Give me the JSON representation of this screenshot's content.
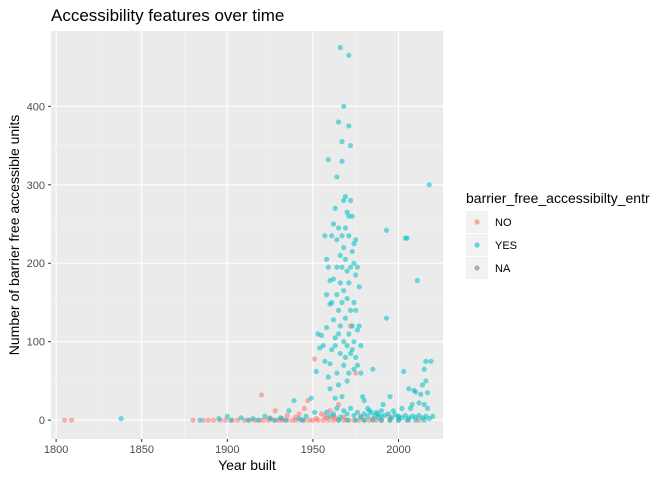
{
  "chart_data": {
    "type": "scatter",
    "title": "Accessibility features over time",
    "xlabel": "Year built",
    "ylabel": "Number of barrier free accessible units",
    "xlim": [
      1797,
      2026
    ],
    "ylim": [
      -24,
      496
    ],
    "x_ticks": [
      1800,
      1850,
      1900,
      1950,
      2000
    ],
    "y_ticks": [
      0,
      100,
      200,
      300,
      400
    ],
    "x_tick_labels": [
      "1800",
      "1850",
      "1900",
      "1950",
      "2000"
    ],
    "y_tick_labels": [
      "0",
      "100",
      "200",
      "300",
      "400"
    ],
    "grid": true,
    "legend": {
      "title": "barrier_free_accessibilty_entr",
      "position": "right",
      "entries": [
        {
          "label": "NO",
          "color": "#F8766D"
        },
        {
          "label": "YES",
          "color": "#00BFC4"
        },
        {
          "label": "NA",
          "color": "#7F7F7F"
        }
      ]
    },
    "colors": {
      "panel": "#EBEBEB",
      "grid_major": "#FFFFFF",
      "grid_minor": "#F5F5F5"
    },
    "series": [
      {
        "name": "NO",
        "color": "#F8766D",
        "points": [
          [
            1805,
            0
          ],
          [
            1809,
            0
          ],
          [
            1880,
            0
          ],
          [
            1886,
            0
          ],
          [
            1889,
            0
          ],
          [
            1892,
            0
          ],
          [
            1896,
            0
          ],
          [
            1899,
            0
          ],
          [
            1903,
            0
          ],
          [
            1906,
            0
          ],
          [
            1910,
            0
          ],
          [
            1913,
            0
          ],
          [
            1916,
            0
          ],
          [
            1919,
            0
          ],
          [
            1921,
            0
          ],
          [
            1924,
            0
          ],
          [
            1927,
            0
          ],
          [
            1930,
            0
          ],
          [
            1932,
            0
          ],
          [
            1935,
            0
          ],
          [
            1938,
            0
          ],
          [
            1940,
            0
          ],
          [
            1943,
            0
          ],
          [
            1945,
            0
          ],
          [
            1948,
            0
          ],
          [
            1950,
            0
          ],
          [
            1953,
            0
          ],
          [
            1956,
            0
          ],
          [
            1959,
            0
          ],
          [
            1962,
            0
          ],
          [
            1965,
            0
          ],
          [
            1968,
            0
          ],
          [
            1971,
            0
          ],
          [
            1974,
            0
          ],
          [
            1977,
            0
          ],
          [
            1980,
            0
          ],
          [
            1983,
            0
          ],
          [
            1987,
            0
          ],
          [
            1990,
            0
          ],
          [
            1995,
            0
          ],
          [
            2000,
            0
          ],
          [
            2006,
            0
          ],
          [
            2012,
            0
          ],
          [
            1920,
            32
          ],
          [
            1928,
            12
          ],
          [
            1935,
            6
          ],
          [
            1940,
            4
          ],
          [
            1945,
            15
          ],
          [
            1947,
            25
          ],
          [
            1951,
            78
          ],
          [
            1955,
            8
          ],
          [
            1958,
            3
          ],
          [
            1960,
            12
          ],
          [
            1962,
            5
          ],
          [
            1965,
            20
          ],
          [
            1968,
            4
          ],
          [
            1972,
            120
          ],
          [
            1975,
            60
          ],
          [
            1978,
            5
          ],
          [
            1985,
            2
          ],
          [
            1995,
            4
          ],
          [
            1925,
            3
          ],
          [
            1932,
            2
          ],
          [
            1942,
            8
          ],
          [
            1952,
            2
          ],
          [
            1957,
            5
          ],
          [
            1963,
            3
          ]
        ]
      },
      {
        "name": "YES",
        "color": "#00BFC4",
        "points": [
          [
            1838,
            2
          ],
          [
            1884,
            0
          ],
          [
            1895,
            2
          ],
          [
            1900,
            5
          ],
          [
            1902,
            0
          ],
          [
            1908,
            3
          ],
          [
            1912,
            0
          ],
          [
            1915,
            2
          ],
          [
            1918,
            0
          ],
          [
            1922,
            5
          ],
          [
            1925,
            2
          ],
          [
            1928,
            0
          ],
          [
            1931,
            3
          ],
          [
            1934,
            0
          ],
          [
            1936,
            12
          ],
          [
            1939,
            25
          ],
          [
            1942,
            2
          ],
          [
            1944,
            0
          ],
          [
            1946,
            5
          ],
          [
            1949,
            28
          ],
          [
            1951,
            10
          ],
          [
            1952,
            62
          ],
          [
            1953,
            110
          ],
          [
            1954,
            92
          ],
          [
            1955,
            108
          ],
          [
            1956,
            95
          ],
          [
            1957,
            75
          ],
          [
            1957,
            235
          ],
          [
            1958,
            118
          ],
          [
            1958,
            205
          ],
          [
            1958,
            160
          ],
          [
            1959,
            195
          ],
          [
            1959,
            332
          ],
          [
            1959,
            55
          ],
          [
            1960,
            72
          ],
          [
            1960,
            148
          ],
          [
            1960,
            178
          ],
          [
            1960,
            40
          ],
          [
            1961,
            90
          ],
          [
            1961,
            235
          ],
          [
            1961,
            150
          ],
          [
            1962,
            180
          ],
          [
            1962,
            128
          ],
          [
            1962,
            250
          ],
          [
            1963,
            105
          ],
          [
            1963,
            95
          ],
          [
            1963,
            270
          ],
          [
            1963,
            28
          ],
          [
            1964,
            230
          ],
          [
            1964,
            195
          ],
          [
            1964,
            160
          ],
          [
            1964,
            310
          ],
          [
            1964,
            60
          ],
          [
            1965,
            110
          ],
          [
            1965,
            380
          ],
          [
            1965,
            140
          ],
          [
            1965,
            245
          ],
          [
            1965,
            45
          ],
          [
            1966,
            475
          ],
          [
            1966,
            210
          ],
          [
            1966,
            175
          ],
          [
            1966,
            85
          ],
          [
            1966,
            120
          ],
          [
            1967,
            355
          ],
          [
            1967,
            235
          ],
          [
            1967,
            195
          ],
          [
            1967,
            330
          ],
          [
            1967,
            150
          ],
          [
            1967,
            30
          ],
          [
            1968,
            400
          ],
          [
            1968,
            280
          ],
          [
            1968,
            220
          ],
          [
            1968,
            165
          ],
          [
            1968,
            100
          ],
          [
            1968,
            70
          ],
          [
            1969,
            285
          ],
          [
            1969,
            245
          ],
          [
            1969,
            205
          ],
          [
            1969,
            130
          ],
          [
            1969,
            80
          ],
          [
            1970,
            265
          ],
          [
            1970,
            190
          ],
          [
            1970,
            155
          ],
          [
            1970,
            95
          ],
          [
            1970,
            50
          ],
          [
            1971,
            465
          ],
          [
            1971,
            375
          ],
          [
            1971,
            260
          ],
          [
            1971,
            235
          ],
          [
            1971,
            175
          ],
          [
            1971,
            110
          ],
          [
            1971,
            60
          ],
          [
            1972,
            350
          ],
          [
            1972,
            280
          ],
          [
            1972,
            195
          ],
          [
            1972,
            140
          ],
          [
            1972,
            85
          ],
          [
            1973,
            260
          ],
          [
            1973,
            215
          ],
          [
            1973,
            120
          ],
          [
            1973,
            90
          ],
          [
            1974,
            225
          ],
          [
            1974,
            200
          ],
          [
            1974,
            150
          ],
          [
            1974,
            100
          ],
          [
            1974,
            65
          ],
          [
            1975,
            230
          ],
          [
            1975,
            185
          ],
          [
            1975,
            140
          ],
          [
            1975,
            80
          ],
          [
            1976,
            195
          ],
          [
            1976,
            115
          ],
          [
            1976,
            70
          ],
          [
            1977,
            170
          ],
          [
            1977,
            120
          ],
          [
            1978,
            95
          ],
          [
            1978,
            60
          ],
          [
            1979,
            30
          ],
          [
            1980,
            25
          ],
          [
            1982,
            15
          ],
          [
            1983,
            12
          ],
          [
            1985,
            65
          ],
          [
            1987,
            10
          ],
          [
            1988,
            8
          ],
          [
            1990,
            5
          ],
          [
            1991,
            20
          ],
          [
            1993,
            242
          ],
          [
            1993,
            130
          ],
          [
            1995,
            30
          ],
          [
            1997,
            12
          ],
          [
            2000,
            5
          ],
          [
            2002,
            15
          ],
          [
            2003,
            62
          ],
          [
            2004,
            232
          ],
          [
            2005,
            232
          ],
          [
            2006,
            40
          ],
          [
            2007,
            15
          ],
          [
            2008,
            20
          ],
          [
            2009,
            38
          ],
          [
            2010,
            36
          ],
          [
            2011,
            178
          ],
          [
            2012,
            22
          ],
          [
            2013,
            33
          ],
          [
            2014,
            45
          ],
          [
            2015,
            20
          ],
          [
            2015,
            65
          ],
          [
            2016,
            75
          ],
          [
            2016,
            50
          ],
          [
            2017,
            35
          ],
          [
            2017,
            15
          ],
          [
            2018,
            300
          ],
          [
            2019,
            75
          ],
          [
            2020,
            5
          ],
          [
            1958,
            10
          ],
          [
            1960,
            5
          ],
          [
            1962,
            8
          ],
          [
            1964,
            15
          ],
          [
            1966,
            4
          ],
          [
            1968,
            12
          ],
          [
            1970,
            8
          ],
          [
            1972,
            15
          ],
          [
            1974,
            6
          ],
          [
            1976,
            10
          ],
          [
            1978,
            4
          ],
          [
            1980,
            8
          ],
          [
            1982,
            5
          ],
          [
            1984,
            10
          ],
          [
            1986,
            6
          ],
          [
            1988,
            4
          ],
          [
            1990,
            12
          ],
          [
            1992,
            6
          ],
          [
            1994,
            8
          ],
          [
            1996,
            3
          ],
          [
            1998,
            7
          ],
          [
            2000,
            4
          ],
          [
            2002,
            3
          ],
          [
            2004,
            6
          ],
          [
            2006,
            3
          ],
          [
            2008,
            5
          ],
          [
            2010,
            4
          ],
          [
            2012,
            6
          ],
          [
            2014,
            3
          ],
          [
            2016,
            5
          ],
          [
            2018,
            2
          ],
          [
            1985,
            0
          ],
          [
            1990,
            0
          ],
          [
            1995,
            0
          ],
          [
            2000,
            0
          ],
          [
            2005,
            0
          ],
          [
            2010,
            0
          ],
          [
            2015,
            0
          ],
          [
            1975,
            0
          ],
          [
            1980,
            0
          ],
          [
            1965,
            0
          ],
          [
            1970,
            0
          ]
        ]
      }
    ]
  }
}
